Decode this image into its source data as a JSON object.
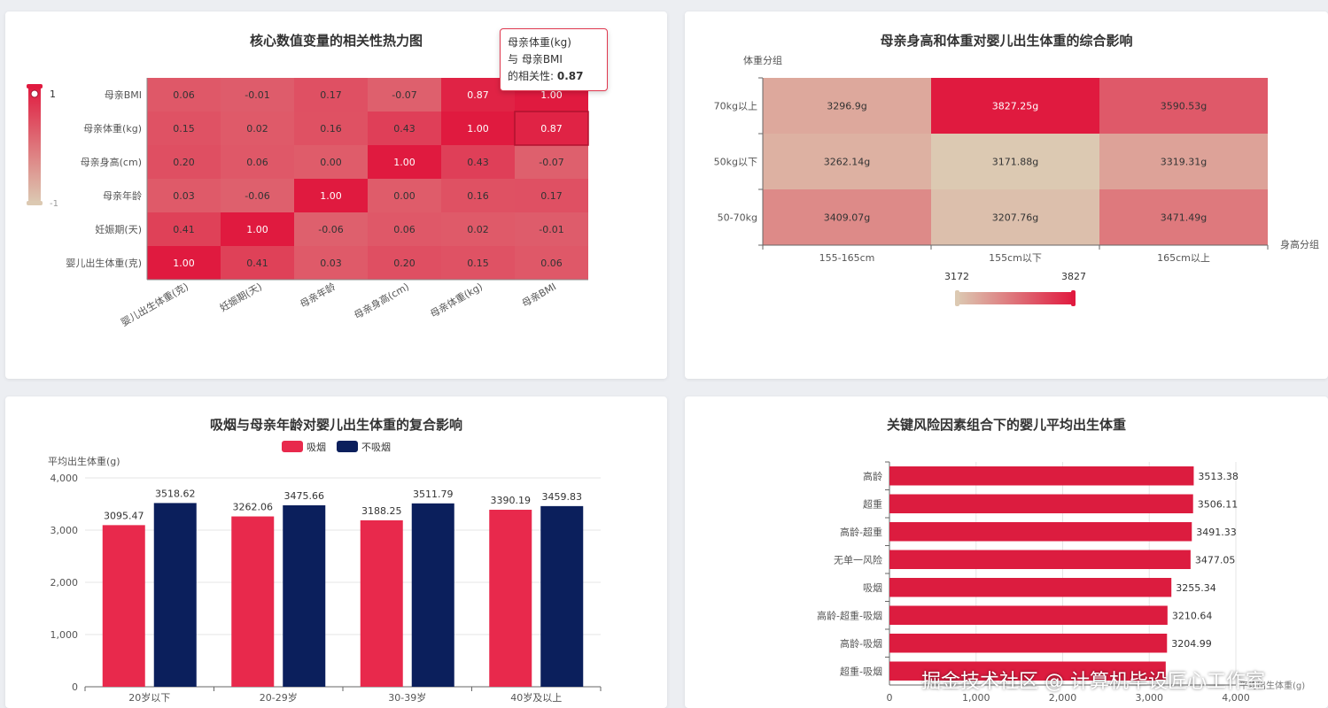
{
  "colors": {
    "low": "#dcc9b2",
    "high": "#e01a3f",
    "smoke": "#e8294c",
    "nonsmoke": "#0b1f5c",
    "riskbar": "#dc1c3f"
  },
  "watermark": "掘金技术社区 @ 计算机毕设匠心工作室",
  "chart_data": [
    {
      "id": "corr",
      "type": "heatmap",
      "title": "核心数值变量的相关性热力图",
      "x_categories": [
        "婴儿出生体重(克)",
        "妊娠期(天)",
        "母亲年龄",
        "母亲身高(cm)",
        "母亲体重(kg)",
        "母亲BMI"
      ],
      "y_categories": [
        "婴儿出生体重(克)",
        "妊娠期(天)",
        "母亲年龄",
        "母亲身高(cm)",
        "母亲体重(kg)",
        "母亲BMI"
      ],
      "values": [
        [
          "1.00",
          "0.41",
          "0.03",
          "0.20",
          "0.15",
          "0.06"
        ],
        [
          "0.41",
          "1.00",
          "-0.06",
          "0.06",
          "0.02",
          "-0.01"
        ],
        [
          "0.03",
          "-0.06",
          "1.00",
          "0.00",
          "0.16",
          "0.17"
        ],
        [
          "0.20",
          "0.06",
          "0.00",
          "1.00",
          "0.43",
          "-0.07"
        ],
        [
          "0.15",
          "0.02",
          "0.16",
          "0.43",
          "1.00",
          "0.87"
        ],
        [
          "0.06",
          "-0.01",
          "0.17",
          "-0.07",
          "0.87",
          "1.00"
        ]
      ],
      "visual_map": {
        "min": -1,
        "max": 1,
        "min_label": "-1",
        "max_label": "1"
      },
      "tooltip": {
        "line1": "母亲体重(kg)",
        "line2": "与 母亲BMI",
        "line3_label": "的相关性: ",
        "line3_value": "0.87"
      }
    },
    {
      "id": "heightweight",
      "type": "heatmap",
      "title": "母亲身高和体重对婴儿出生体重的综合影响",
      "xlabel": "身高分组",
      "ylabel": "体重分组",
      "x_categories": [
        "155-165cm",
        "155cm以下",
        "165cm以上"
      ],
      "y_categories": [
        "50-70kg",
        "50kg以下",
        "70kg以上"
      ],
      "values": [
        [
          "3409.07g",
          "3207.76g",
          "3471.49g"
        ],
        [
          "3262.14g",
          "3171.88g",
          "3319.31g"
        ],
        [
          "3296.9g",
          "3827.25g",
          "3590.53g"
        ]
      ],
      "visual_map": {
        "min": 3172,
        "max": 3827,
        "min_label": "3172",
        "max_label": "3827"
      }
    },
    {
      "id": "smoking",
      "type": "bar",
      "title": "吸烟与母亲年龄对婴儿出生体重的复合影响",
      "ylabel": "平均出生体重(g)",
      "categories": [
        "20岁以下",
        "20-29岁",
        "30-39岁",
        "40岁及以上"
      ],
      "series": [
        {
          "name": "吸烟",
          "values": [
            3095.47,
            3262.06,
            3188.25,
            3390.19
          ]
        },
        {
          "name": "不吸烟",
          "values": [
            3518.62,
            3475.66,
            3511.79,
            3459.83
          ]
        }
      ],
      "ylim": [
        0,
        4000
      ],
      "yticks": [
        "0",
        "1,000",
        "2,000",
        "3,000",
        "4,000"
      ],
      "legend": "top-center"
    },
    {
      "id": "risk",
      "type": "bar",
      "orientation": "horizontal",
      "title": "关键风险因素组合下的婴儿平均出生体重",
      "xlabel": "平均出生体重(g)",
      "categories": [
        "高龄",
        "超重",
        "高龄-超重",
        "无单一风险",
        "吸烟",
        "高龄-超重-吸烟",
        "高龄-吸烟",
        "超重-吸烟"
      ],
      "values": [
        3513.38,
        3506.11,
        3491.33,
        3477.05,
        3255.34,
        3210.64,
        3204.99,
        3190
      ],
      "value_labels": [
        "3513.38",
        "3506.11",
        "3491.33",
        "3477.05",
        "3255.34",
        "3210.64",
        "3204.99",
        ""
      ],
      "xlim": [
        0,
        4000
      ],
      "xticks": [
        "0",
        "1,000",
        "2,000",
        "3,000",
        "4,000"
      ]
    }
  ]
}
